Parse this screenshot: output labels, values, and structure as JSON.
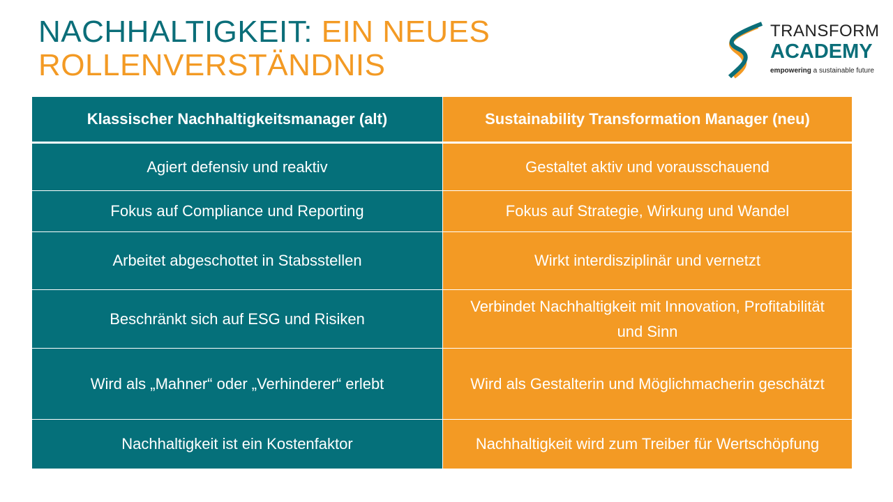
{
  "title": {
    "part1": "NACHHALTIGKEIT:",
    "part2": "EIN NEUES",
    "line2": "ROLLENVERSTÄNDNIS"
  },
  "logo": {
    "line1": "TRANSFORM",
    "line2": "ACADEMY",
    "tag_bold": "empowering",
    "tag_rest": " a sustainable future"
  },
  "colors": {
    "teal": "#05707a",
    "orange": "#f39a24"
  },
  "table": {
    "headers": [
      "Klassischer Nachhaltigkeitsmanager (alt)",
      "Sustainability Transformation Manager (neu)"
    ],
    "rows": [
      [
        "Agiert defensiv und reaktiv",
        "Gestaltet aktiv und vorausschauend"
      ],
      [
        "Fokus auf Compliance und Reporting",
        "Fokus auf Strategie, Wirkung und Wandel"
      ],
      [
        "Arbeitet abgeschottet in Stabsstellen",
        "Wirkt interdisziplinär und vernetzt"
      ],
      [
        "Beschränkt sich auf ESG und Risiken",
        "Verbindet Nachhaltigkeit mit Innovation, Profitabilität und Sinn"
      ],
      [
        "Wird als „Mahner“ oder „Verhinderer“ erlebt",
        "Wird als Gestalterin und Möglichmacherin geschätzt"
      ],
      [
        "Nachhaltigkeit ist ein Kostenfaktor",
        "Nachhaltigkeit wird zum Treiber für Wertschöpfung"
      ]
    ]
  }
}
